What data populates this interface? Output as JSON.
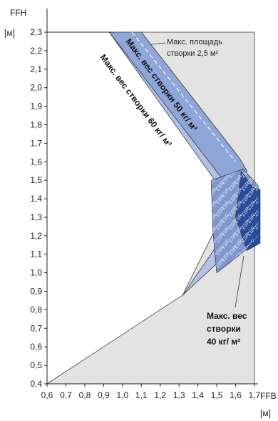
{
  "chart_data": {
    "type": "area",
    "ylabel": "FFH",
    "xlabel": "FFB",
    "yunit": "[м]",
    "xunit": "[м]",
    "xlim": [
      0.6,
      1.8
    ],
    "ylim": [
      0.4,
      2.3
    ],
    "x_ticks": [
      "0,6",
      "0,7",
      "0,8",
      "0,9",
      "1,0",
      "1,1",
      "1,2",
      "1,3",
      "1,4",
      "1,5",
      "1,6",
      "1,7"
    ],
    "y_ticks": [
      "0,4",
      "0,5",
      "0,6",
      "0,7",
      "0,8",
      "0,9",
      "1,0",
      "1,1",
      "1,2",
      "1,3",
      "1,4",
      "1,5",
      "1,6",
      "1,7",
      "1,8",
      "1,9",
      "2,0",
      "2,1",
      "2,2",
      "2,3"
    ],
    "regions": [
      {
        "name": "background",
        "color": "#e3e3e3",
        "points": [
          [
            0.6,
            0.4
          ],
          [
            1.32,
            0.88
          ],
          [
            1.62,
            1.5
          ],
          [
            1.005,
            2.3
          ],
          [
            1.7,
            2.3
          ],
          [
            1.7,
            0.4
          ]
        ]
      },
      {
        "name": "band-60",
        "color": "#b3c2e3",
        "points": [
          [
            0.93,
            2.3
          ],
          [
            1.1,
            2.3
          ],
          [
            1.62,
            1.62
          ],
          [
            1.66,
            1.55
          ],
          [
            1.62,
            1.3
          ],
          [
            1.5,
            1.05
          ],
          [
            1.32,
            0.88
          ],
          [
            1.55,
            1.22
          ],
          [
            1.49,
            1.5
          ]
        ]
      },
      {
        "name": "band-50",
        "color": "#8fa6d8",
        "points": [
          [
            0.93,
            2.3
          ],
          [
            1.1,
            2.3
          ],
          [
            1.62,
            1.62
          ],
          [
            1.66,
            1.55
          ],
          [
            1.62,
            1.3
          ],
          [
            1.56,
            1.4
          ],
          [
            1.52,
            1.52
          ]
        ]
      },
      {
        "name": "region-zsr",
        "color": "#7f96cf",
        "points": [
          [
            1.47,
            1.5
          ],
          [
            1.64,
            1.56
          ],
          [
            1.72,
            1.47
          ],
          [
            1.72,
            1.2
          ],
          [
            1.65,
            1.12
          ],
          [
            1.5,
            1.0
          ],
          [
            1.48,
            1.22
          ]
        ]
      },
      {
        "name": "region-40",
        "color": "#2a4b99",
        "points": [
          [
            1.63,
            1.55
          ],
          [
            1.69,
            1.46
          ],
          [
            1.73,
            1.45
          ],
          [
            1.73,
            1.16
          ],
          [
            1.66,
            1.12
          ],
          [
            1.6,
            1.3
          ]
        ]
      }
    ],
    "dashed_line": [
      [
        1.05,
        2.3
      ],
      [
        1.6,
        1.6
      ]
    ],
    "annotations": {
      "max_area_line1": "Макс. площадь",
      "max_area_line2": "створки 2,5 м²",
      "weight_50": "Макс. вес створки 50 кг/ м²",
      "weight_60": "Макс. вес створки 60 кг/ м²",
      "weight_40_line1": "Макс. вес",
      "weight_40_line2": "створки",
      "weight_40_line3": "40 кг/ м²",
      "pattern_text": "ZSR"
    },
    "grid": false
  }
}
